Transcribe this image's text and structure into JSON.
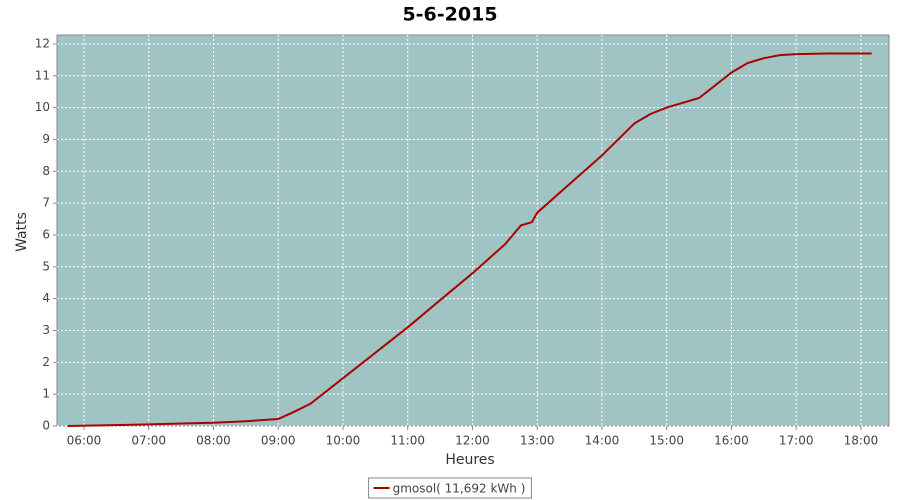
{
  "chart_data": {
    "type": "line",
    "title": "5-6-2015",
    "x_label": "Heures",
    "y_label": "Watts",
    "x": [
      "05:45",
      "06:15",
      "07:00",
      "07:30",
      "08:00",
      "08:30",
      "09:00",
      "09:15",
      "09:30",
      "10:00",
      "10:30",
      "11:00",
      "11:30",
      "12:00",
      "12:30",
      "12:45",
      "12:55",
      "13:00",
      "13:30",
      "14:00",
      "14:30",
      "14:45",
      "15:00",
      "15:30",
      "15:45",
      "16:00",
      "16:15",
      "16:30",
      "16:45",
      "17:00",
      "17:30",
      "18:00",
      "18:10"
    ],
    "series": [
      {
        "name": "gmosol( 11,692 kWh )",
        "color": "#aa0000",
        "values": [
          0,
          0.02,
          0.05,
          0.08,
          0.1,
          0.15,
          0.22,
          0.45,
          0.7,
          1.5,
          2.3,
          3.1,
          3.95,
          4.8,
          5.7,
          6.3,
          6.4,
          6.7,
          7.6,
          8.5,
          9.5,
          9.8,
          10.0,
          10.3,
          10.7,
          11.1,
          11.4,
          11.55,
          11.65,
          11.68,
          11.7,
          11.7,
          11.7
        ]
      }
    ],
    "xlim": [
      "05:35",
      "18:26"
    ],
    "xticks": [
      "06:00",
      "07:00",
      "08:00",
      "09:00",
      "10:00",
      "11:00",
      "12:00",
      "13:00",
      "14:00",
      "15:00",
      "16:00",
      "17:00",
      "18:00"
    ],
    "ylim": [
      0,
      12.28
    ],
    "yticks": [
      0,
      1,
      2,
      3,
      4,
      5,
      6,
      7,
      8,
      9,
      10,
      11,
      12
    ],
    "grid": true,
    "legend": "bottom",
    "background": "#a0c3c3"
  }
}
